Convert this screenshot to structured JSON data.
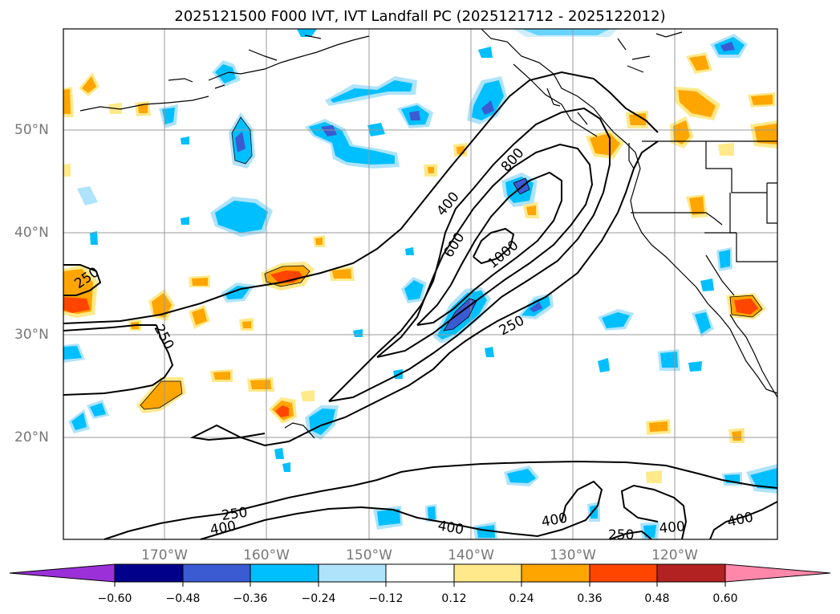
{
  "title": "2025121500 F000 IVT, IVT Landfall PC (2025121712 - 2025122012)",
  "longitude_labels": [
    "170°W",
    "160°W",
    "150°W",
    "140°W",
    "130°W",
    "120°W"
  ],
  "latitude_labels": [
    "50°N",
    "40°N",
    "30°N",
    "20°N"
  ],
  "contour_labels": [
    "250",
    "250",
    "400",
    "600",
    "800",
    "1000",
    "250",
    "250",
    "400",
    "400",
    "400",
    "250",
    "400",
    "400"
  ],
  "colorbar": {
    "tick_labels": [
      "−0.60",
      "−0.48",
      "−0.36",
      "−0.24",
      "−0.12",
      "0.12",
      "0.24",
      "0.36",
      "0.48",
      "0.60"
    ],
    "colors": [
      "#9b30d9",
      "#00008b",
      "#3a5bd1",
      "#00bfff",
      "#aee3fb",
      "#ffffff",
      "#ffe98a",
      "#ffa500",
      "#ff4500",
      "#b22222",
      "#ff88aa"
    ]
  },
  "fill_colors": {
    "light_blue": "#aee3fb",
    "deep_sky": "#00bfff",
    "royal_blue": "#3a5bd1",
    "light_yellow": "#ffe98a",
    "orange": "#ffa500",
    "orange_red": "#ff4500"
  }
}
